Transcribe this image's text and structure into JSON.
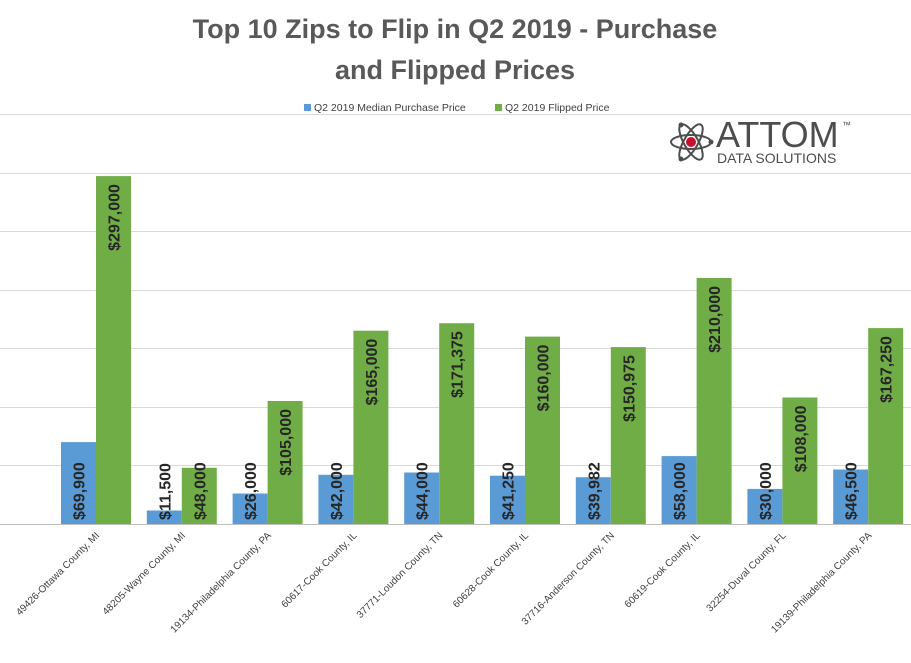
{
  "chart_data": {
    "type": "bar",
    "title_lines": [
      "Top 10 Zips to Flip in Q2 2019 - Purchase",
      "and Flipped Prices"
    ],
    "categories": [
      "49426-Ottawa County, MI",
      "48205-Wayne County, MI",
      "19134-Philadelphia County, PA",
      "60617-Cook County, IL",
      "37771-Loudon County, TN",
      "60628-Cook County, IL",
      "37716-Anderson County, TN",
      "60619-Cook County, IL",
      "32254-Duval County, FL",
      "19139-Philadelphia County, PA"
    ],
    "series": [
      {
        "name": "Q2 2019 Median Purchase Price",
        "color": "#5b9bd5",
        "values": [
          69900,
          11500,
          26000,
          42000,
          44000,
          41250,
          39982,
          58000,
          30000,
          46500
        ],
        "labels": [
          "$69,900",
          "$11,500",
          "$26,000",
          "$42,000",
          "$44,000",
          "$41,250",
          "$39,982",
          "$58,000",
          "$30,000",
          "$46,500"
        ]
      },
      {
        "name": "Q2 2019 Flipped Price",
        "color": "#70ad47",
        "values": [
          297000,
          48000,
          105000,
          165000,
          171375,
          160000,
          150975,
          210000,
          108000,
          167250
        ],
        "labels": [
          "$297,000",
          "$48,000",
          "$105,000",
          "$165,000",
          "$171,375",
          "$160,000",
          "$150,975",
          "$210,000",
          "$108,000",
          "$167,250"
        ]
      }
    ],
    "ylim": [
      0,
      350000
    ],
    "gridline_step": 50000,
    "legend_position": "top-center",
    "xlabel": "",
    "ylabel": ""
  },
  "logo": {
    "main_text": "ATTOM",
    "trademark": "™",
    "sub_text": "DATA SOLUTIONS",
    "accent_color": "#c8102e"
  },
  "colors": {
    "grid": "#d9d9d9",
    "axis": "#bfbfbf"
  }
}
